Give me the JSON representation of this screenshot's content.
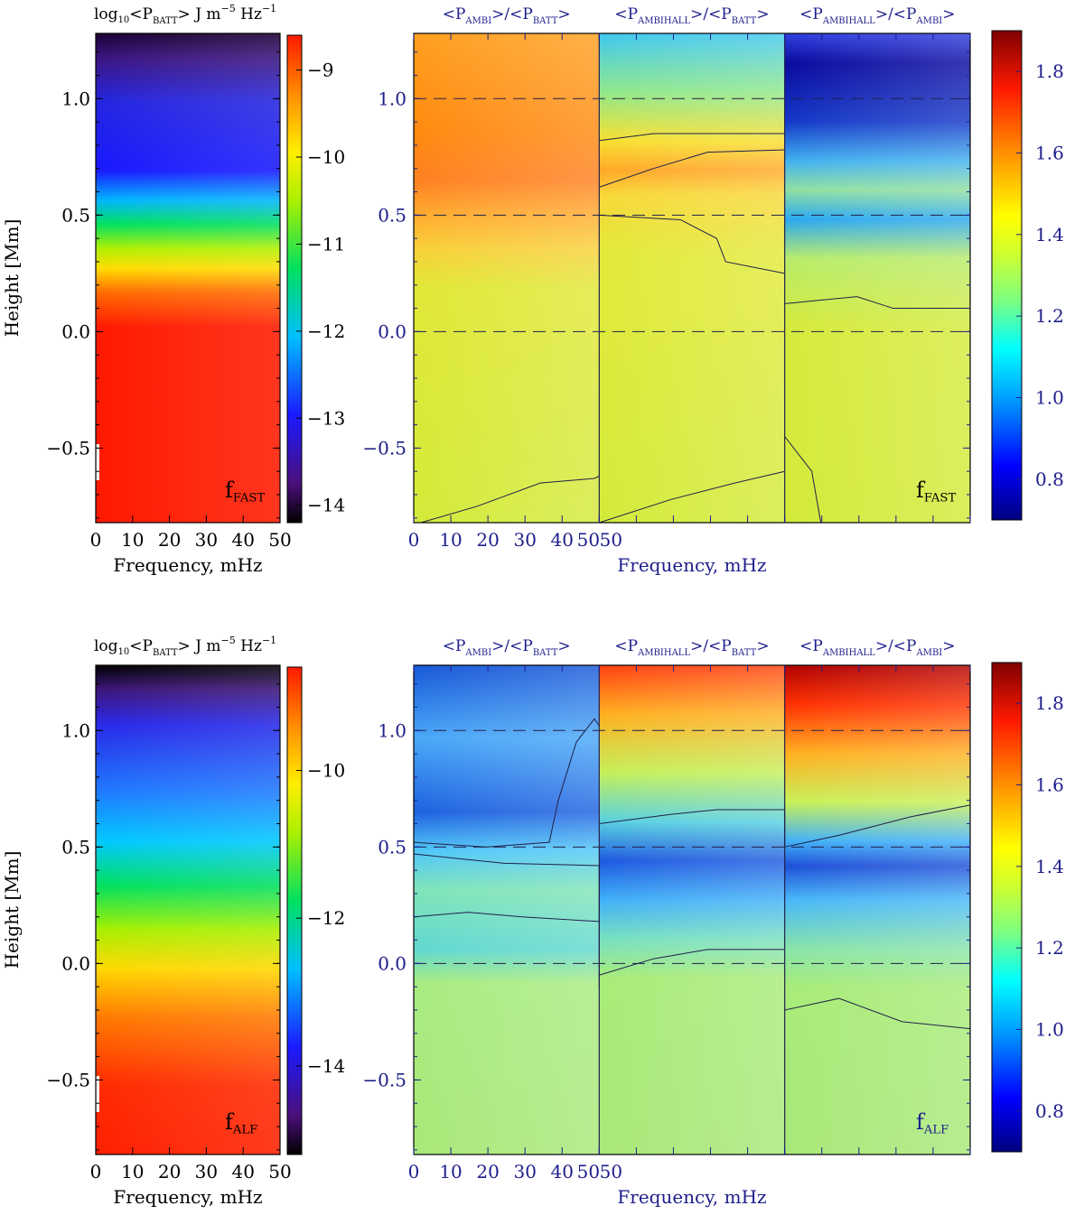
{
  "figure": {
    "panels": [
      {
        "row_label": "f_FAST",
        "power_map": {
          "title": "log₁₀<P_BATT> J m⁻⁵ Hz⁻¹",
          "title_parts": {
            "prefix": "log",
            "sub10": "10",
            "open": "<P",
            "sub": "BATT",
            "rest": "> J m",
            "sup1": "−5",
            "mid": " Hz",
            "sup2": "−1"
          },
          "label_main": "f",
          "label_sub": "FAST",
          "xlabel": "Frequency, mHz",
          "ylabel": "Height [Mm]",
          "xticks": [
            "0",
            "10",
            "20",
            "30",
            "40",
            "50"
          ],
          "yticks": [
            "−0.5",
            "0.0",
            "0.5",
            "1.0"
          ],
          "colorbar_ticks": [
            "−9",
            "−10",
            "−11",
            "−12",
            "−13",
            "−14"
          ]
        },
        "ratio_map": {
          "segment_titles": [
            {
              "a": "AMBI",
              "b": "BATT"
            },
            {
              "a": "AMBIHALL",
              "b": "BATT"
            },
            {
              "a": "AMBIHALL",
              "b": "AMBI"
            }
          ],
          "label_main": "f",
          "label_sub": "FAST",
          "xlabel": "Frequency, mHz",
          "xticks": [
            "0",
            "10",
            "20",
            "30",
            "40",
            "50",
            "50"
          ],
          "yticks": [
            "−0.5",
            "0.0",
            "0.5",
            "1.0"
          ],
          "colorbar_ticks": [
            "0.8",
            "1.0",
            "1.2",
            "1.4",
            "1.6",
            "1.8"
          ]
        }
      },
      {
        "row_label": "f_ALF",
        "power_map": {
          "title": "log₁₀<P_BATT> J m⁻⁵ Hz⁻¹",
          "title_parts": {
            "prefix": "log",
            "sub10": "10",
            "open": "<P",
            "sub": "BATT",
            "rest": "> J m",
            "sup1": "−5",
            "mid": " Hz",
            "sup2": "−1"
          },
          "label_main": "f",
          "label_sub": "ALF",
          "xlabel": "Frequency, mHz",
          "ylabel": "Height [Mm]",
          "xticks": [
            "0",
            "10",
            "20",
            "30",
            "40",
            "50"
          ],
          "yticks": [
            "−0.5",
            "0.0",
            "0.5",
            "1.0"
          ],
          "colorbar_ticks": [
            "−10",
            "−12",
            "−14"
          ]
        },
        "ratio_map": {
          "segment_titles": [
            {
              "a": "AMBI",
              "b": "BATT"
            },
            {
              "a": "AMBIHALL",
              "b": "BATT"
            },
            {
              "a": "AMBIHALL",
              "b": "AMBI"
            }
          ],
          "label_main": "f",
          "label_sub": "ALF",
          "xlabel": "Frequency, mHz",
          "xticks": [
            "0",
            "10",
            "20",
            "30",
            "40",
            "50",
            "50"
          ],
          "yticks": [
            "−0.5",
            "0.0",
            "0.5",
            "1.0"
          ],
          "colorbar_ticks": [
            "0.8",
            "1.0",
            "1.2",
            "1.4",
            "1.6",
            "1.8"
          ]
        }
      }
    ]
  },
  "chart_data": [
    {
      "type": "heatmap",
      "title": "log₁₀<P_BATT> J m⁻⁵ Hz⁻¹",
      "xlabel": "Frequency, mHz",
      "ylabel": "Height [Mm]",
      "xlim": [
        0,
        50
      ],
      "ylim": [
        -0.82,
        1.28
      ],
      "colorbar_range": [
        -14.2,
        -8.6
      ],
      "colormap": "rainbow",
      "annotation": "f_FAST",
      "approx_profile": {
        "height_Mm": [
          -0.8,
          -0.5,
          0.0,
          0.2,
          0.3,
          0.4,
          0.5,
          0.7,
          1.0,
          1.28
        ],
        "log10_power": [
          -9.0,
          -9.0,
          -9.0,
          -9.6,
          -10.4,
          -11.0,
          -12.0,
          -12.9,
          -13.1,
          -14.1
        ]
      }
    },
    {
      "type": "heatmap",
      "title": "<P_AMBI>/<P_BATT>, <P_AMBIHALL>/<P_BATT>, <P_AMBIHALL>/<P_AMBI>",
      "xlabel": "Frequency, mHz",
      "ylabel": "Height [Mm]",
      "xlim": [
        0,
        50
      ],
      "ylim": [
        -0.82,
        1.28
      ],
      "colorbar_range": [
        0.7,
        1.9
      ],
      "colormap": "jet",
      "annotation": "f_FAST",
      "reference_lines_Mm": [
        -0.0,
        0.5,
        1.0
      ],
      "approx_segment_values": {
        "AMBI/BATT": {
          "height_Mm": [
            -0.8,
            0.0,
            0.4,
            0.7,
            1.2
          ],
          "ratio": [
            1.12,
            1.12,
            1.3,
            1.55,
            1.45
          ]
        },
        "AMBIHALL/BATT": {
          "height_Mm": [
            -0.8,
            0.0,
            0.4,
            0.7,
            1.2
          ],
          "ratio": [
            1.12,
            1.12,
            1.15,
            1.4,
            1.0
          ]
        },
        "AMBIHALL/AMBI": {
          "height_Mm": [
            -0.8,
            0.0,
            0.4,
            0.6,
            1.1
          ],
          "ratio": [
            1.12,
            1.12,
            1.1,
            0.9,
            0.75
          ]
        }
      }
    },
    {
      "type": "heatmap",
      "title": "log₁₀<P_BATT> J m⁻⁵ Hz⁻¹",
      "xlabel": "Frequency, mHz",
      "ylabel": "Height [Mm]",
      "xlim": [
        0,
        50
      ],
      "ylim": [
        -0.82,
        1.28
      ],
      "colorbar_range": [
        -15.2,
        -8.6
      ],
      "colormap": "rainbow",
      "annotation": "f_ALF",
      "approx_profile": {
        "height_Mm": [
          -0.8,
          -0.5,
          0.0,
          0.2,
          0.4,
          0.6,
          0.8,
          1.0,
          1.28
        ],
        "log10_power": [
          -9.2,
          -9.2,
          -9.6,
          -10.6,
          -11.6,
          -12.6,
          -13.0,
          -13.4,
          -15.0
        ]
      }
    },
    {
      "type": "heatmap",
      "title": "<P_AMBI>/<P_BATT>, <P_AMBIHALL>/<P_BATT>, <P_AMBIHALL>/<P_AMBI>",
      "xlabel": "Frequency, mHz",
      "ylabel": "Height [Mm]",
      "xlim": [
        0,
        50
      ],
      "ylim": [
        -0.82,
        1.28
      ],
      "colorbar_range": [
        0.7,
        1.9
      ],
      "colormap": "jet",
      "annotation": "f_ALF",
      "reference_lines_Mm": [
        -0.0,
        0.5,
        1.0
      ],
      "approx_segment_values": {
        "AMBI/BATT": {
          "height_Mm": [
            -0.8,
            0.0,
            0.4,
            0.7,
            1.2
          ],
          "ratio": [
            1.08,
            1.08,
            1.02,
            0.85,
            0.85
          ]
        },
        "AMBIHALL/BATT": {
          "height_Mm": [
            -0.8,
            0.0,
            0.4,
            0.7,
            1.2
          ],
          "ratio": [
            1.08,
            1.0,
            0.85,
            1.1,
            1.45
          ]
        },
        "AMBIHALL/AMBI": {
          "height_Mm": [
            -0.8,
            0.0,
            0.4,
            0.7,
            1.2
          ],
          "ratio": [
            1.05,
            1.05,
            0.85,
            1.1,
            1.65
          ]
        }
      }
    }
  ]
}
